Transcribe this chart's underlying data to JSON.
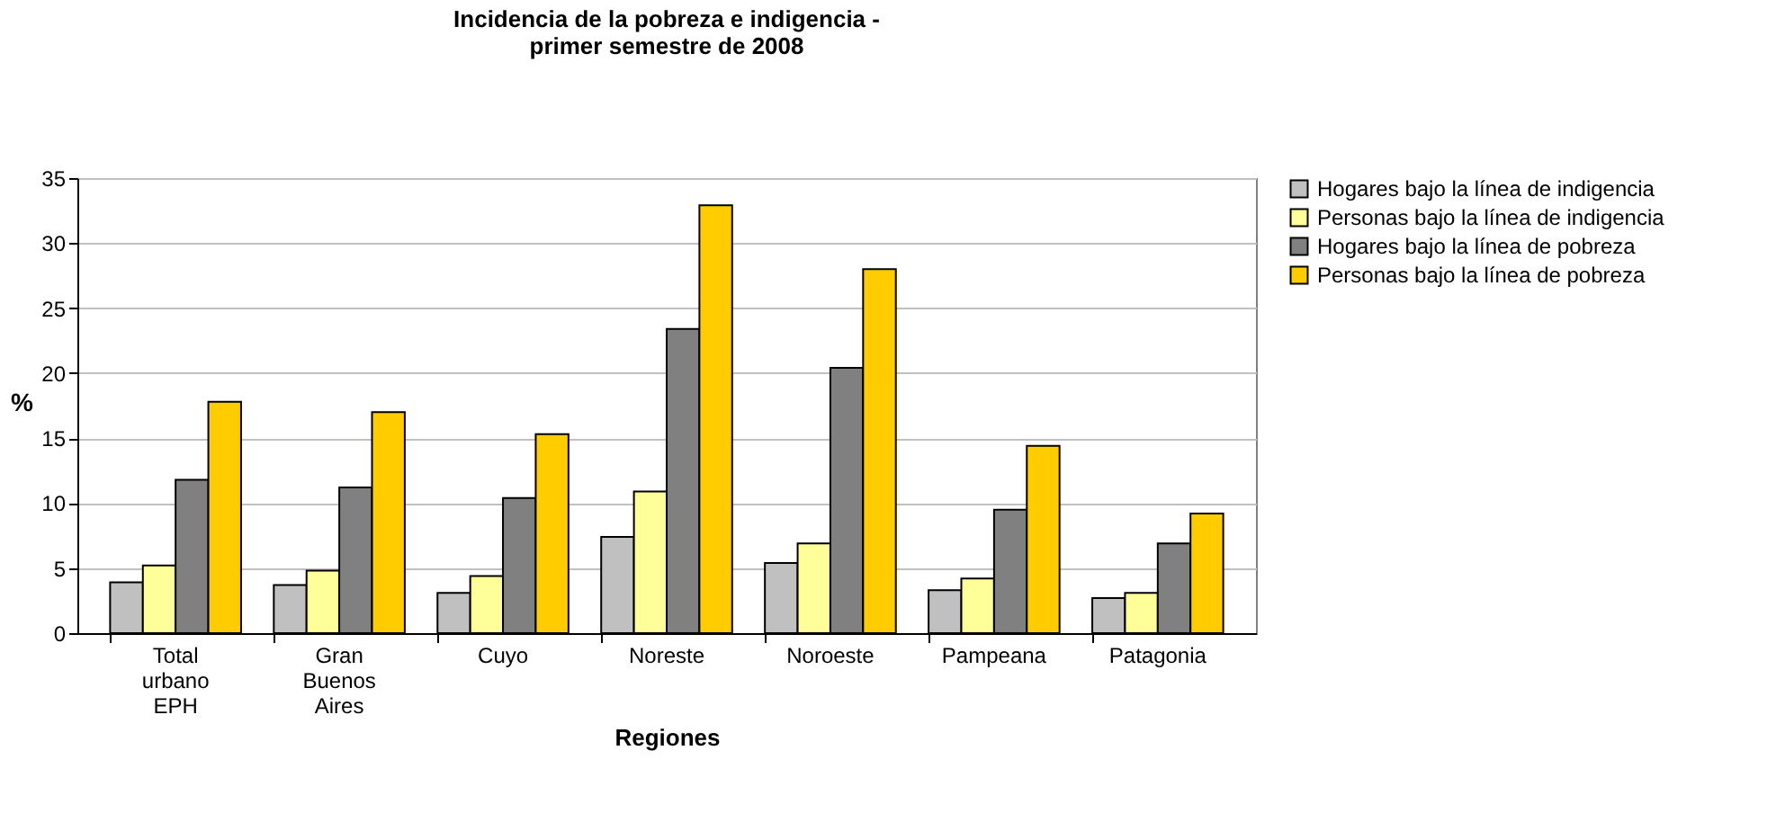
{
  "chart_data": {
    "type": "bar",
    "title": "Incidencia de la pobreza e indigencia -\nprimer semestre de 2008",
    "xlabel": "Regiones",
    "ylabel": "%",
    "categories": [
      "Total urbano EPH",
      "Gran Buenos Aires",
      "Cuyo",
      "Noreste",
      "Noroeste",
      "Pampeana",
      "Patagonia"
    ],
    "series": [
      {
        "name": "Hogares bajo la línea de indigencia",
        "color": "#c0c0c0",
        "values": [
          3.9,
          3.7,
          3.1,
          7.4,
          5.4,
          3.3,
          2.7
        ]
      },
      {
        "name": "Personas bajo la línea de indigencia",
        "color": "#ffff99",
        "values": [
          5.2,
          4.8,
          4.4,
          10.9,
          6.9,
          4.2,
          3.1
        ]
      },
      {
        "name": "Hogares bajo la línea de pobreza",
        "color": "#808080",
        "values": [
          11.8,
          11.2,
          10.4,
          23.4,
          20.4,
          9.5,
          6.9
        ]
      },
      {
        "name": "Personas bajo la línea de pobreza",
        "color": "#ffcc00",
        "values": [
          17.8,
          17.0,
          15.3,
          32.9,
          28.0,
          14.4,
          9.2
        ]
      }
    ],
    "ylim": [
      0,
      35
    ],
    "yticks": [
      0,
      5,
      10,
      15,
      20,
      25,
      30,
      35
    ],
    "grid": "y",
    "legend": "right"
  }
}
